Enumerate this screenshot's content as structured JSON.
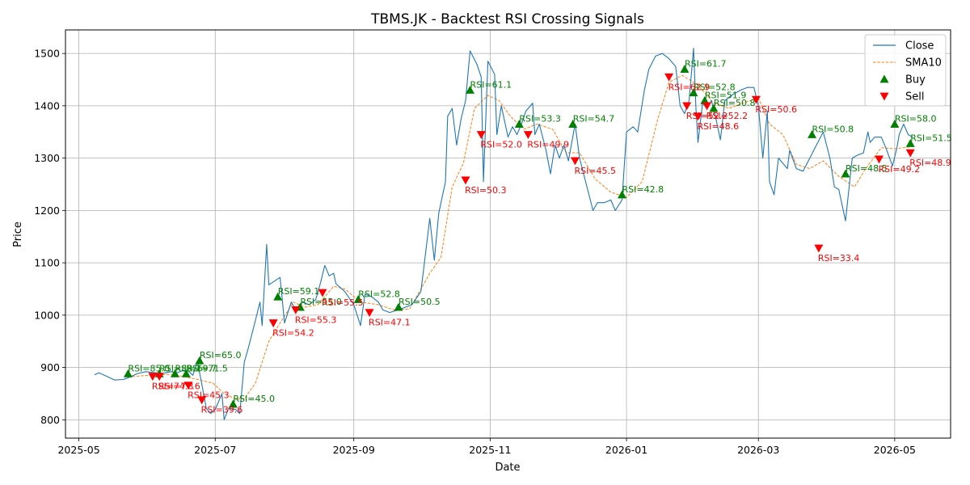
{
  "chart_data": {
    "type": "line",
    "title": "TBMS.JK - Backtest RSI Crossing Signals",
    "xlabel": "Date",
    "ylabel": "Price",
    "xlim": [
      "2025-04-25",
      "2026-05-26"
    ],
    "ylim": [
      765,
      1545
    ],
    "x_ticks": [
      "2025-05-01",
      "2025-07-01",
      "2025-09-01",
      "2025-11-01",
      "2026-01-01",
      "2026-03-01",
      "2026-05-01"
    ],
    "x_tick_labels": [
      "2025-05",
      "2025-07",
      "2025-09",
      "2025-11",
      "2026-01",
      "2026-03",
      "2026-05"
    ],
    "y_ticks": [
      800,
      900,
      1000,
      1100,
      1200,
      1300,
      1400,
      1500
    ],
    "y_tick_labels": [
      "800",
      "900",
      "1000",
      "1100",
      "1200",
      "1300",
      "1400",
      "1500"
    ],
    "grid": true,
    "legend_position": "upper-right",
    "colors": {
      "close": "#1f77b4",
      "sma": "#ff7f0e",
      "buy": "green",
      "sell": "red"
    },
    "series": [
      {
        "name": "Close",
        "style": "solid",
        "points": [
          [
            "2025-05-08",
            886
          ],
          [
            "2025-05-10",
            890
          ],
          [
            "2025-05-14",
            882
          ],
          [
            "2025-05-17",
            876
          ],
          [
            "2025-05-21",
            877
          ],
          [
            "2025-05-24",
            882
          ],
          [
            "2025-05-27",
            888
          ],
          [
            "2025-05-31",
            892
          ],
          [
            "2025-06-04",
            890
          ],
          [
            "2025-06-07",
            888
          ],
          [
            "2025-06-11",
            892
          ],
          [
            "2025-06-14",
            890
          ],
          [
            "2025-06-17",
            895
          ],
          [
            "2025-06-19",
            893
          ],
          [
            "2025-06-21",
            885
          ],
          [
            "2025-06-23",
            912
          ],
          [
            "2025-06-25",
            868
          ],
          [
            "2025-06-27",
            822
          ],
          [
            "2025-06-29",
            812
          ],
          [
            "2025-07-01",
            820
          ],
          [
            "2025-07-04",
            850
          ],
          [
            "2025-07-05",
            800
          ],
          [
            "2025-07-07",
            822
          ],
          [
            "2025-07-10",
            820
          ],
          [
            "2025-07-12",
            812
          ],
          [
            "2025-07-14",
            910
          ],
          [
            "2025-07-16",
            940
          ],
          [
            "2025-07-19",
            990
          ],
          [
            "2025-07-21",
            1025
          ],
          [
            "2025-07-22",
            980
          ],
          [
            "2025-07-24",
            1135
          ],
          [
            "2025-07-25",
            1058
          ],
          [
            "2025-07-30",
            1072
          ],
          [
            "2025-08-01",
            985
          ],
          [
            "2025-08-04",
            1025
          ],
          [
            "2025-08-06",
            1010
          ],
          [
            "2025-08-09",
            1025
          ],
          [
            "2025-08-12",
            1020
          ],
          [
            "2025-08-15",
            1030
          ],
          [
            "2025-08-17",
            1060
          ],
          [
            "2025-08-19",
            1095
          ],
          [
            "2025-08-21",
            1075
          ],
          [
            "2025-08-23",
            1080
          ],
          [
            "2025-08-24",
            1060
          ],
          [
            "2025-08-28",
            1045
          ],
          [
            "2025-09-01",
            1020
          ],
          [
            "2025-09-04",
            980
          ],
          [
            "2025-09-06",
            1040
          ],
          [
            "2025-09-09",
            1035
          ],
          [
            "2025-09-12",
            1025
          ],
          [
            "2025-09-14",
            1010
          ],
          [
            "2025-09-17",
            1005
          ],
          [
            "2025-09-21",
            1010
          ],
          [
            "2025-09-24",
            1015
          ],
          [
            "2025-09-27",
            1020
          ],
          [
            "2025-10-01",
            1045
          ],
          [
            "2025-10-03",
            1115
          ],
          [
            "2025-10-05",
            1185
          ],
          [
            "2025-10-07",
            1105
          ],
          [
            "2025-10-09",
            1195
          ],
          [
            "2025-10-12",
            1255
          ],
          [
            "2025-10-13",
            1380
          ],
          [
            "2025-10-15",
            1395
          ],
          [
            "2025-10-17",
            1325
          ],
          [
            "2025-10-19",
            1375
          ],
          [
            "2025-10-21",
            1410
          ],
          [
            "2025-10-23",
            1505
          ],
          [
            "2025-10-26",
            1480
          ],
          [
            "2025-10-28",
            1455
          ],
          [
            "2025-10-29",
            1255
          ],
          [
            "2025-10-31",
            1485
          ],
          [
            "2025-11-03",
            1460
          ],
          [
            "2025-11-04",
            1345
          ],
          [
            "2025-11-06",
            1400
          ],
          [
            "2025-11-09",
            1340
          ],
          [
            "2025-11-11",
            1360
          ],
          [
            "2025-11-13",
            1345
          ],
          [
            "2025-11-15",
            1365
          ],
          [
            "2025-11-17",
            1390
          ],
          [
            "2025-11-20",
            1405
          ],
          [
            "2025-11-21",
            1345
          ],
          [
            "2025-11-23",
            1365
          ],
          [
            "2025-11-26",
            1315
          ],
          [
            "2025-11-28",
            1270
          ],
          [
            "2025-11-30",
            1325
          ],
          [
            "2025-12-02",
            1300
          ],
          [
            "2025-12-04",
            1325
          ],
          [
            "2025-12-06",
            1295
          ],
          [
            "2025-12-09",
            1365
          ],
          [
            "2025-12-11",
            1300
          ],
          [
            "2025-12-14",
            1250
          ],
          [
            "2025-12-17",
            1200
          ],
          [
            "2025-12-19",
            1215
          ],
          [
            "2025-12-22",
            1215
          ],
          [
            "2025-12-25",
            1220
          ],
          [
            "2025-12-27",
            1200
          ],
          [
            "2025-12-30",
            1220
          ],
          [
            "2026-01-01",
            1350
          ],
          [
            "2026-01-04",
            1360
          ],
          [
            "2026-01-06",
            1350
          ],
          [
            "2026-01-09",
            1430
          ],
          [
            "2026-01-11",
            1470
          ],
          [
            "2026-01-14",
            1495
          ],
          [
            "2026-01-17",
            1500
          ],
          [
            "2026-01-20",
            1490
          ],
          [
            "2026-01-23",
            1475
          ],
          [
            "2026-01-25",
            1400
          ],
          [
            "2026-01-27",
            1385
          ],
          [
            "2026-01-29",
            1410
          ],
          [
            "2026-01-31",
            1510
          ],
          [
            "2026-02-01",
            1400
          ],
          [
            "2026-02-02",
            1330
          ],
          [
            "2026-02-04",
            1405
          ],
          [
            "2026-02-06",
            1395
          ],
          [
            "2026-02-08",
            1410
          ],
          [
            "2026-02-10",
            1375
          ],
          [
            "2026-02-12",
            1335
          ],
          [
            "2026-02-14",
            1410
          ],
          [
            "2026-02-17",
            1420
          ],
          [
            "2026-02-21",
            1430
          ],
          [
            "2026-02-24",
            1435
          ],
          [
            "2026-02-27",
            1435
          ],
          [
            "2026-03-01",
            1400
          ],
          [
            "2026-03-03",
            1300
          ],
          [
            "2026-03-05",
            1390
          ],
          [
            "2026-03-06",
            1255
          ],
          [
            "2026-03-08",
            1230
          ],
          [
            "2026-03-10",
            1300
          ],
          [
            "2026-03-12",
            1290
          ],
          [
            "2026-03-14",
            1280
          ],
          [
            "2026-03-15",
            1315
          ],
          [
            "2026-03-18",
            1280
          ],
          [
            "2026-03-21",
            1275
          ],
          [
            "2026-03-24",
            1300
          ],
          [
            "2026-03-27",
            1325
          ],
          [
            "2026-03-30",
            1350
          ],
          [
            "2026-04-02",
            1300
          ],
          [
            "2026-04-04",
            1245
          ],
          [
            "2026-04-06",
            1240
          ],
          [
            "2026-04-09",
            1180
          ],
          [
            "2026-04-12",
            1300
          ],
          [
            "2026-04-14",
            1305
          ],
          [
            "2026-04-17",
            1310
          ],
          [
            "2026-04-19",
            1350
          ],
          [
            "2026-04-20",
            1330
          ],
          [
            "2026-04-22",
            1340
          ],
          [
            "2026-04-25",
            1340
          ],
          [
            "2026-04-27",
            1320
          ],
          [
            "2026-04-30",
            1285
          ],
          [
            "2026-05-02",
            1320
          ],
          [
            "2026-05-03",
            1345
          ],
          [
            "2026-05-05",
            1365
          ],
          [
            "2026-05-07",
            1345
          ],
          [
            "2026-05-09",
            1340
          ]
        ]
      },
      {
        "name": "SMA10",
        "style": "dashed",
        "points": [
          [
            "2025-05-23",
            882
          ],
          [
            "2025-06-01",
            885
          ],
          [
            "2025-06-11",
            887
          ],
          [
            "2025-06-20",
            880
          ],
          [
            "2025-06-25",
            875
          ],
          [
            "2025-06-30",
            870
          ],
          [
            "2025-07-05",
            850
          ],
          [
            "2025-07-10",
            840
          ],
          [
            "2025-07-14",
            840
          ],
          [
            "2025-07-19",
            870
          ],
          [
            "2025-07-25",
            950
          ],
          [
            "2025-07-30",
            985
          ],
          [
            "2025-08-05",
            1025
          ],
          [
            "2025-08-10",
            1015
          ],
          [
            "2025-08-16",
            1020
          ],
          [
            "2025-08-23",
            1055
          ],
          [
            "2025-08-28",
            1050
          ],
          [
            "2025-09-04",
            1025
          ],
          [
            "2025-09-12",
            1020
          ],
          [
            "2025-09-19",
            1010
          ],
          [
            "2025-09-26",
            1012
          ],
          [
            "2025-10-05",
            1080
          ],
          [
            "2025-10-10",
            1110
          ],
          [
            "2025-10-15",
            1245
          ],
          [
            "2025-10-20",
            1290
          ],
          [
            "2025-10-25",
            1395
          ],
          [
            "2025-10-31",
            1420
          ],
          [
            "2025-11-05",
            1410
          ],
          [
            "2025-11-10",
            1380
          ],
          [
            "2025-11-16",
            1355
          ],
          [
            "2025-11-22",
            1365
          ],
          [
            "2025-11-29",
            1355
          ],
          [
            "2025-12-05",
            1310
          ],
          [
            "2025-12-11",
            1310
          ],
          [
            "2025-12-18",
            1260
          ],
          [
            "2025-12-25",
            1235
          ],
          [
            "2026-01-01",
            1225
          ],
          [
            "2026-01-08",
            1255
          ],
          [
            "2026-01-15",
            1375
          ],
          [
            "2026-01-20",
            1445
          ],
          [
            "2026-01-26",
            1458
          ],
          [
            "2026-02-02",
            1440
          ],
          [
            "2026-02-09",
            1405
          ],
          [
            "2026-02-16",
            1395
          ],
          [
            "2026-02-22",
            1405
          ],
          [
            "2026-03-01",
            1415
          ],
          [
            "2026-03-06",
            1365
          ],
          [
            "2026-03-12",
            1345
          ],
          [
            "2026-03-18",
            1288
          ],
          [
            "2026-03-24",
            1280
          ],
          [
            "2026-03-30",
            1295
          ],
          [
            "2026-04-06",
            1265
          ],
          [
            "2026-04-13",
            1245
          ],
          [
            "2026-04-18",
            1280
          ],
          [
            "2026-04-25",
            1320
          ],
          [
            "2026-05-01",
            1318
          ],
          [
            "2026-05-09",
            1322
          ]
        ]
      }
    ],
    "buy_signals": [
      {
        "date": "2025-05-23",
        "price": 888,
        "label": "RSI=85.0"
      },
      {
        "date": "2025-06-06",
        "price": 888,
        "label": "RSI=83.2"
      },
      {
        "date": "2025-06-13",
        "price": 888,
        "label": "RSI=69.7"
      },
      {
        "date": "2025-06-18",
        "price": 888,
        "label": "RSI=71.5"
      },
      {
        "date": "2025-06-24",
        "price": 913,
        "label": "RSI=65.0"
      },
      {
        "date": "2025-07-09",
        "price": 830,
        "label": "RSI=45.0"
      },
      {
        "date": "2025-07-29",
        "price": 1035,
        "label": "RSI=59.1"
      },
      {
        "date": "2025-08-08",
        "price": 1015,
        "label": "RSI=55.0"
      },
      {
        "date": "2025-09-03",
        "price": 1030,
        "label": "RSI=52.8"
      },
      {
        "date": "2025-09-21",
        "price": 1015,
        "label": "RSI=50.5"
      },
      {
        "date": "2025-10-23",
        "price": 1430,
        "label": "RSI=61.1"
      },
      {
        "date": "2025-11-14",
        "price": 1365,
        "label": "RSI=53.3"
      },
      {
        "date": "2025-12-08",
        "price": 1365,
        "label": "RSI=54.7"
      },
      {
        "date": "2025-12-30",
        "price": 1230,
        "label": "RSI=42.8"
      },
      {
        "date": "2026-01-27",
        "price": 1470,
        "label": "RSI=61.7"
      },
      {
        "date": "2026-01-31",
        "price": 1425,
        "label": "RSI=52.8"
      },
      {
        "date": "2026-02-05",
        "price": 1410,
        "label": "RSI=51.9"
      },
      {
        "date": "2026-02-09",
        "price": 1395,
        "label": "RSI=50.8"
      },
      {
        "date": "2026-03-25",
        "price": 1345,
        "label": "RSI=50.8"
      },
      {
        "date": "2026-04-09",
        "price": 1270,
        "label": "RSI=48.5"
      },
      {
        "date": "2026-05-01",
        "price": 1365,
        "label": "RSI=58.0"
      },
      {
        "date": "2026-05-08",
        "price": 1328,
        "label": "RSI=51.5"
      }
    ],
    "sell_signals": [
      {
        "date": "2025-06-03",
        "price": 883,
        "label": "RSI=74.8"
      },
      {
        "date": "2025-06-06",
        "price": 883,
        "label": "RSI=77.6"
      },
      {
        "date": "2025-06-19",
        "price": 866,
        "label": "RSI=45.3"
      },
      {
        "date": "2025-06-25",
        "price": 838,
        "label": "RSI=39.6"
      },
      {
        "date": "2025-07-27",
        "price": 985,
        "label": "RSI=54.2"
      },
      {
        "date": "2025-08-06",
        "price": 1010,
        "label": "RSI=55.3"
      },
      {
        "date": "2025-08-18",
        "price": 1043,
        "label": "RSI=55.5"
      },
      {
        "date": "2025-09-08",
        "price": 1005,
        "label": "RSI=47.1"
      },
      {
        "date": "2025-10-21",
        "price": 1258,
        "label": "RSI=50.3"
      },
      {
        "date": "2025-10-28",
        "price": 1345,
        "label": "RSI=52.0"
      },
      {
        "date": "2025-11-18",
        "price": 1345,
        "label": "RSI=49.9"
      },
      {
        "date": "2025-12-09",
        "price": 1295,
        "label": "RSI=45.5"
      },
      {
        "date": "2026-01-20",
        "price": 1455,
        "label": "RSI=62.9"
      },
      {
        "date": "2026-01-28",
        "price": 1400,
        "label": "RSI=52.2"
      },
      {
        "date": "2026-02-02",
        "price": 1380,
        "label": "RSI=48.6"
      },
      {
        "date": "2026-02-06",
        "price": 1400,
        "label": "RSI=52.2"
      },
      {
        "date": "2026-02-28",
        "price": 1412,
        "label": "RSI=50.6"
      },
      {
        "date": "2026-03-28",
        "price": 1128,
        "label": "RSI=33.4"
      },
      {
        "date": "2026-04-24",
        "price": 1298,
        "label": "RSI=49.2"
      },
      {
        "date": "2026-05-08",
        "price": 1310,
        "label": "RSI=48.9"
      }
    ],
    "legend": [
      {
        "key": "close",
        "label": "Close"
      },
      {
        "key": "sma",
        "label": "SMA10"
      },
      {
        "key": "buy",
        "label": "Buy"
      },
      {
        "key": "sell",
        "label": "Sell"
      }
    ]
  }
}
